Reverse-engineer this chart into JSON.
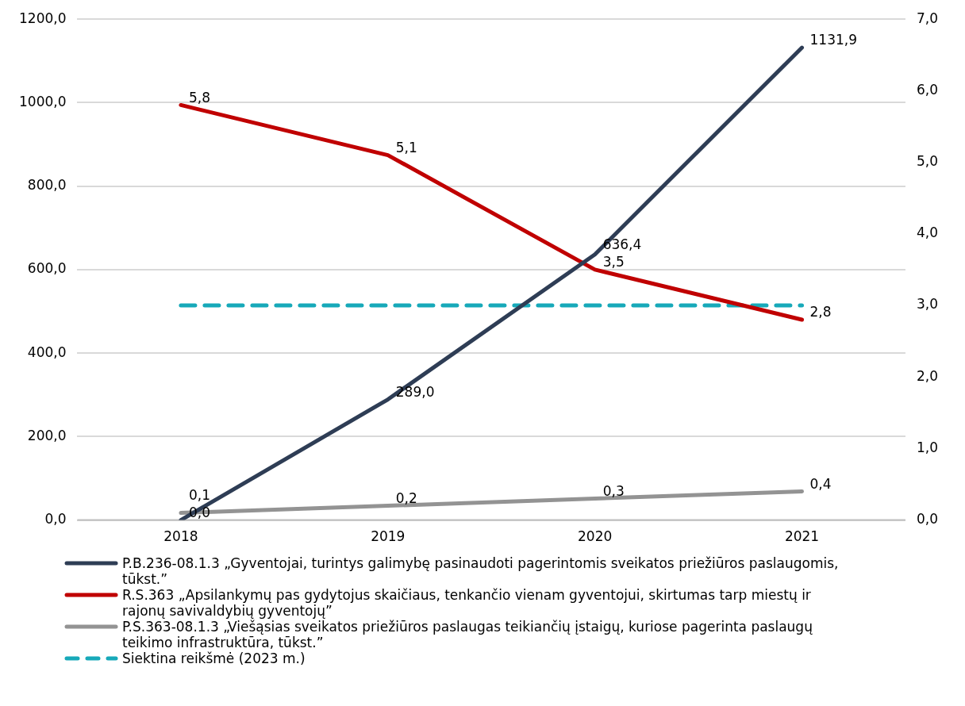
{
  "chart_data": {
    "type": "line",
    "categories": [
      "2018",
      "2019",
      "2020",
      "2021"
    ],
    "series": [
      {
        "name": "P.B.236-08.1.3 „Gyventojai, turintys galimybę pasinaudoti pagerintomis sveikatos priežiūros paslaugomis, tūkst.”",
        "color": "#2e3d55",
        "values": [
          0.0,
          289.0,
          636.4,
          1131.9
        ],
        "value_labels": [
          "0,0",
          "289,0",
          "636,4",
          "1131,9"
        ]
      },
      {
        "name": "R.S.363 „Apsilankymų pas gydytojus skaičiaus, tenkančio vienam gyventojui, skirtumas tarp miestų ir rajonų savivaldybių gyventojų”",
        "color": "#c00000",
        "axis": "y2",
        "values": [
          5.8,
          5.1,
          3.5,
          2.8
        ],
        "value_labels": [
          "5,8",
          "5,1",
          "3,5",
          "2,8"
        ]
      },
      {
        "name": "P.S.363-08.1.3 „Viešąsias sveikatos priežiūros paslaugas teikiančių įstaigų, kuriose pagerinta paslaugų teikimo infrastruktūra, tūkst.”",
        "color": "#939393",
        "axis": "y2",
        "values": [
          0.1,
          0.2,
          0.3,
          0.4
        ],
        "value_labels": [
          "0,1",
          "0,2",
          "0,3",
          "0,4"
        ]
      },
      {
        "name": "Siektina reikšmė (2023 m.)",
        "color": "#17a9b9",
        "axis": "y2",
        "line_style": "dashed",
        "values": [
          3.0,
          3.0,
          3.0,
          3.0
        ]
      }
    ],
    "ylim": [
      0,
      1200
    ],
    "yticks": [
      {
        "value": 0,
        "label": "0,0"
      },
      {
        "value": 200,
        "label": "200,0"
      },
      {
        "value": 400,
        "label": "400,0"
      },
      {
        "value": 600,
        "label": "600,0"
      },
      {
        "value": 800,
        "label": "800,0"
      },
      {
        "value": 1000,
        "label": "1000,0"
      },
      {
        "value": 1200,
        "label": "1200,0"
      }
    ],
    "y2lim": [
      0,
      7
    ],
    "y2ticks": [
      {
        "value": 0,
        "label": "0,0"
      },
      {
        "value": 1,
        "label": "1,0"
      },
      {
        "value": 2,
        "label": "2,0"
      },
      {
        "value": 3,
        "label": "3,0"
      },
      {
        "value": 4,
        "label": "4,0"
      },
      {
        "value": 5,
        "label": "5,0"
      },
      {
        "value": 6,
        "label": "6,0"
      },
      {
        "value": 7,
        "label": "7,0"
      }
    ],
    "grid": "y",
    "legend": "bottom",
    "marker": "none"
  }
}
